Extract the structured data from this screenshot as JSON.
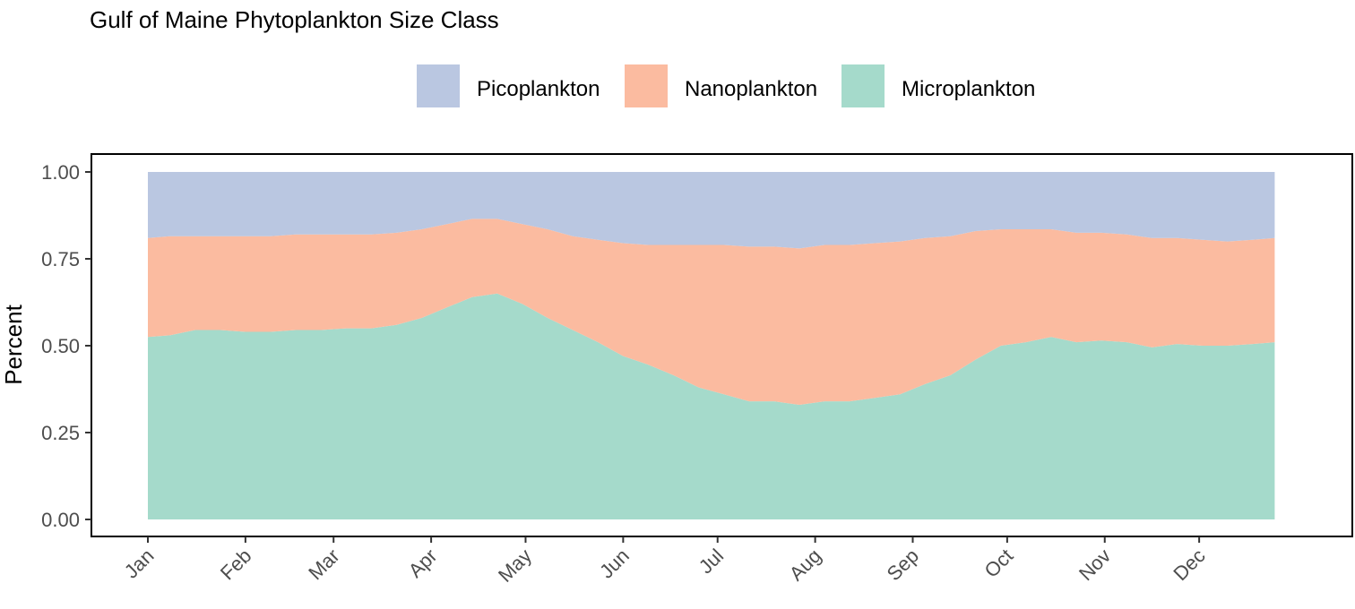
{
  "chart_data": {
    "type": "area",
    "stacked": true,
    "normalized": true,
    "title": "Gulf of Maine Phytoplankton Size Class",
    "xlabel": "",
    "ylabel": "Percent",
    "ylim": [
      0,
      1
    ],
    "yticks": [
      0,
      0.25,
      0.5,
      0.75,
      1.0
    ],
    "ytick_labels": [
      "0.00",
      "0.25",
      "0.50",
      "0.75",
      "1.00"
    ],
    "x_tick_labels": [
      "Jan",
      "Feb",
      "Mar",
      "Apr",
      "May",
      "Jun",
      "Jul",
      "Aug",
      "Sep",
      "Oct",
      "Nov",
      "Dec"
    ],
    "x_unit": "day of year",
    "x_tick_days": [
      1,
      32,
      60,
      91,
      121,
      152,
      182,
      213,
      244,
      274,
      305,
      335
    ],
    "x_range": [
      1,
      366
    ],
    "legend_position": "top",
    "grid": false,
    "x": [
      1,
      8,
      16,
      24,
      32,
      40,
      48,
      56,
      64,
      72,
      80,
      88,
      96,
      104,
      112,
      120,
      128,
      136,
      144,
      152,
      160,
      168,
      176,
      184,
      192,
      200,
      208,
      216,
      224,
      232,
      240,
      248,
      256,
      264,
      272,
      280,
      288,
      296,
      304,
      312,
      320,
      328,
      336,
      344,
      352,
      359
    ],
    "series": [
      {
        "name": "Microplankton",
        "color": "#a5dacb",
        "values": [
          0.525,
          0.53,
          0.545,
          0.545,
          0.54,
          0.54,
          0.545,
          0.545,
          0.55,
          0.55,
          0.56,
          0.58,
          0.61,
          0.64,
          0.65,
          0.62,
          0.58,
          0.545,
          0.51,
          0.47,
          0.445,
          0.415,
          0.38,
          0.36,
          0.34,
          0.34,
          0.33,
          0.34,
          0.34,
          0.35,
          0.36,
          0.39,
          0.415,
          0.46,
          0.5,
          0.51,
          0.525,
          0.51,
          0.515,
          0.51,
          0.495,
          0.505,
          0.5,
          0.5,
          0.505,
          0.51
        ]
      },
      {
        "name": "Nanoplankton",
        "color": "#fbbba0",
        "values": [
          0.285,
          0.285,
          0.27,
          0.27,
          0.275,
          0.275,
          0.275,
          0.275,
          0.27,
          0.27,
          0.265,
          0.255,
          0.24,
          0.225,
          0.215,
          0.23,
          0.255,
          0.27,
          0.295,
          0.325,
          0.345,
          0.375,
          0.41,
          0.43,
          0.445,
          0.445,
          0.45,
          0.45,
          0.45,
          0.445,
          0.44,
          0.42,
          0.4,
          0.37,
          0.335,
          0.325,
          0.31,
          0.315,
          0.31,
          0.31,
          0.315,
          0.305,
          0.305,
          0.3,
          0.3,
          0.3
        ]
      },
      {
        "name": "Picoplankton",
        "color": "#bac7e1",
        "values": [
          0.19,
          0.185,
          0.185,
          0.185,
          0.185,
          0.185,
          0.18,
          0.18,
          0.18,
          0.18,
          0.175,
          0.165,
          0.15,
          0.135,
          0.135,
          0.15,
          0.165,
          0.185,
          0.195,
          0.205,
          0.21,
          0.21,
          0.21,
          0.21,
          0.215,
          0.215,
          0.22,
          0.21,
          0.21,
          0.205,
          0.2,
          0.19,
          0.185,
          0.17,
          0.165,
          0.165,
          0.165,
          0.175,
          0.175,
          0.18,
          0.19,
          0.19,
          0.195,
          0.2,
          0.195,
          0.19
        ]
      }
    ],
    "legend_order": [
      "Picoplankton",
      "Nanoplankton",
      "Microplankton"
    ]
  }
}
